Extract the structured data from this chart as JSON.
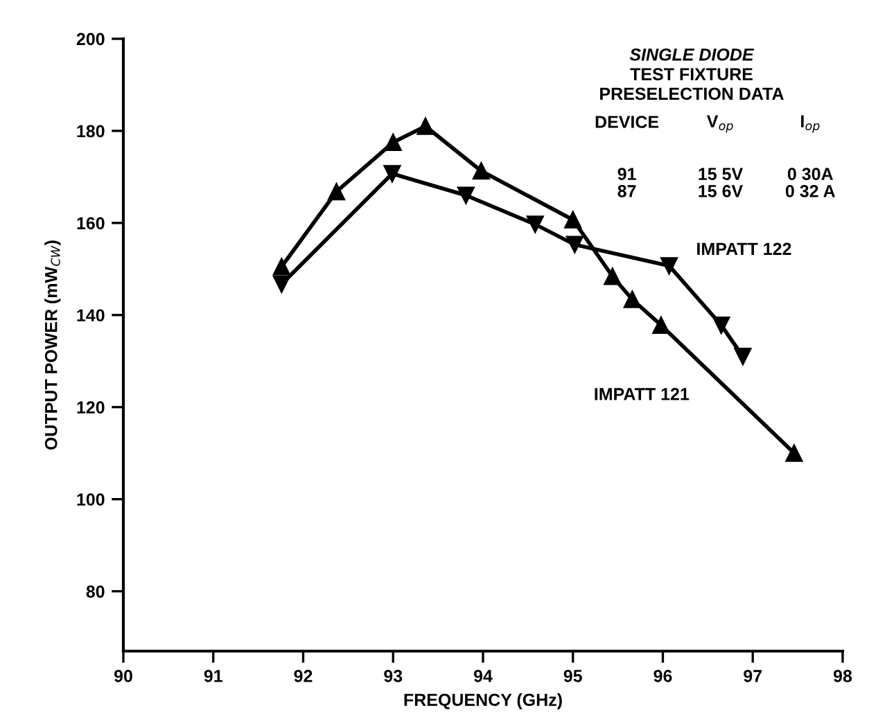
{
  "chart_data": {
    "type": "line",
    "xlabel": "FREQUENCY (GHz)",
    "ylabel": "OUTPUT POWER (mW$_{CW}$)",
    "xlim": [
      90,
      98
    ],
    "xticks": [
      90,
      91,
      92,
      93,
      94,
      95,
      96,
      97,
      98
    ],
    "ylim": [
      67,
      200
    ],
    "yticks": [
      80,
      100,
      120,
      140,
      160,
      180,
      200
    ],
    "grid": false,
    "legend": false,
    "line_style": "solid",
    "series": [
      {
        "name": "IMPATT 121",
        "color": "#000000",
        "marker": "triangle",
        "x": [
          91.76,
          92.37,
          93.0,
          93.36,
          93.98,
          95.0,
          95.44,
          95.66,
          95.98,
          97.46
        ],
        "values": [
          150.5,
          166.8,
          177.5,
          181,
          171.3,
          160.7,
          148.4,
          143.4,
          137.8,
          110
        ]
      },
      {
        "name": "IMPATT 122",
        "color": "#000000",
        "marker": "triangle_down",
        "x": [
          91.76,
          92.99,
          93.81,
          94.58,
          95.02,
          96.07,
          96.65,
          96.89
        ],
        "values": [
          146.7,
          170.7,
          166,
          159.7,
          155.3,
          150.7,
          137.8,
          131
        ]
      }
    ],
    "annotations": [
      "SINGLE DIODE",
      "TEST FIXTURE",
      "PRESELECTION DATA",
      "DEVICE",
      "V$_{op}$",
      "I$_{op}$",
      "91",
      "15 5V",
      "0 30A",
      "87",
      "15 6V",
      "0 32 A"
    ]
  }
}
